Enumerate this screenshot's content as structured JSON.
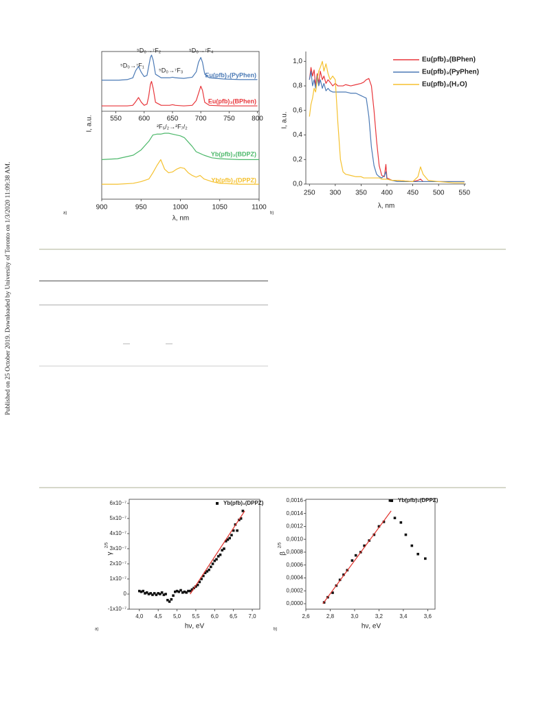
{
  "side_note": "Published on 25 October 2019. Downloaded by University of Toronto on 1/3/2020 11:09:38 AM.",
  "panel_labels": [
    "a)",
    "b)",
    "a)",
    "b)"
  ],
  "table_dashes": [
    "—",
    "—"
  ],
  "chart_data": [
    {
      "type": "line",
      "ylabel": "I, a.u.",
      "xlim": [
        525,
        803
      ],
      "ylim": [
        0,
        1
      ],
      "xticks": [
        550,
        600,
        650,
        700,
        750,
        800
      ],
      "annotations": [
        "⁵D₀→⁷F₁",
        "⁵D₀→⁷F₂",
        "⁵D₀→⁷F₃",
        "⁵D₀→⁷F₄"
      ],
      "x": [
        525,
        540,
        555,
        570,
        580,
        585,
        590,
        595,
        600,
        605,
        608,
        611,
        613,
        616,
        620,
        630,
        645,
        650,
        655,
        670,
        685,
        692,
        696,
        700,
        703,
        707,
        715,
        740,
        770,
        800
      ],
      "series": [
        {
          "name": "Eu(pfb)₃(PyPhen)",
          "color": "#4a79b5",
          "values": [
            0.52,
            0.52,
            0.52,
            0.53,
            0.56,
            0.68,
            0.75,
            0.65,
            0.58,
            0.6,
            0.75,
            0.9,
            0.94,
            0.85,
            0.62,
            0.56,
            0.56,
            0.57,
            0.56,
            0.55,
            0.57,
            0.66,
            0.82,
            0.9,
            0.82,
            0.62,
            0.56,
            0.54,
            0.53,
            0.53
          ]
        },
        {
          "name": "Eu(pfb)₃(BPhen)",
          "color": "#e8353a",
          "values": [
            0.09,
            0.09,
            0.09,
            0.09,
            0.1,
            0.16,
            0.23,
            0.15,
            0.1,
            0.12,
            0.25,
            0.45,
            0.5,
            0.38,
            0.15,
            0.1,
            0.1,
            0.11,
            0.1,
            0.09,
            0.1,
            0.18,
            0.3,
            0.42,
            0.35,
            0.15,
            0.1,
            0.09,
            0.09,
            0.09
          ]
        }
      ]
    },
    {
      "type": "line",
      "xlabel": "λ, nm",
      "xlim": [
        900,
        1100
      ],
      "ylim": [
        0,
        1
      ],
      "xticks": [
        900,
        950,
        1000,
        1050,
        1100
      ],
      "annotations": [
        "²F₅/₂→²F₇/₂"
      ],
      "x": [
        900,
        920,
        940,
        950,
        960,
        965,
        970,
        975,
        980,
        985,
        990,
        995,
        1000,
        1005,
        1010,
        1015,
        1020,
        1025,
        1030,
        1040,
        1050,
        1075,
        1100
      ],
      "series": [
        {
          "name": "Yb(pfb)₃(BDPZ)",
          "color": "#4cb86a",
          "values": [
            0.45,
            0.46,
            0.5,
            0.56,
            0.66,
            0.73,
            0.74,
            0.74,
            0.75,
            0.75,
            0.74,
            0.73,
            0.72,
            0.7,
            0.65,
            0.6,
            0.54,
            0.52,
            0.5,
            0.47,
            0.46,
            0.45,
            0.45
          ]
        },
        {
          "name": "Yb(pfb)₃(DPPZ)",
          "color": "#f5c12e",
          "values": [
            0.17,
            0.17,
            0.18,
            0.2,
            0.23,
            0.3,
            0.38,
            0.45,
            0.34,
            0.3,
            0.31,
            0.34,
            0.36,
            0.35,
            0.3,
            0.27,
            0.25,
            0.27,
            0.23,
            0.2,
            0.18,
            0.17,
            0.17
          ]
        }
      ]
    },
    {
      "type": "line",
      "xlabel": "λ, nm",
      "ylabel": "I, a.u.",
      "xlim": [
        243,
        553
      ],
      "ylim": [
        0,
        1.08
      ],
      "xticks": [
        250,
        300,
        350,
        400,
        450,
        500,
        550
      ],
      "yticks": [
        {
          "value": 0,
          "label": "0,0"
        },
        {
          "value": 0.2,
          "label": "0,2"
        },
        {
          "value": 0.4,
          "label": "0,4"
        },
        {
          "value": 0.6,
          "label": "0,6"
        },
        {
          "value": 0.8,
          "label": "0,8"
        },
        {
          "value": 1.0,
          "label": "1,0"
        }
      ],
      "x": [
        250,
        253,
        256,
        259,
        262,
        265,
        268,
        271,
        275,
        278,
        282,
        286,
        290,
        295,
        300,
        305,
        310,
        315,
        320,
        330,
        340,
        350,
        355,
        360,
        365,
        370,
        375,
        380,
        385,
        390,
        395,
        398,
        400,
        410,
        420,
        450,
        460,
        465,
        470,
        480,
        500,
        530,
        550
      ],
      "series": [
        {
          "name": "Eu(pfb)₃(BPhen)",
          "color": "#e8353a",
          "values": [
            0.85,
            0.95,
            0.88,
            0.93,
            0.8,
            0.9,
            0.82,
            0.92,
            0.85,
            0.88,
            0.82,
            0.85,
            0.83,
            0.8,
            0.82,
            0.8,
            0.8,
            0.8,
            0.81,
            0.8,
            0.81,
            0.82,
            0.83,
            0.85,
            0.86,
            0.8,
            0.6,
            0.35,
            0.15,
            0.07,
            0.06,
            0.16,
            0.05,
            0.03,
            0.03,
            0.02,
            0.03,
            0.04,
            0.02,
            0.02,
            0.02,
            0.02,
            0.02
          ]
        },
        {
          "name": "Eu(pfb)₃(PyPhen)",
          "color": "#4a79b5",
          "values": [
            0.85,
            0.92,
            0.8,
            0.85,
            0.78,
            0.88,
            0.8,
            0.85,
            0.78,
            0.82,
            0.76,
            0.78,
            0.76,
            0.75,
            0.75,
            0.75,
            0.75,
            0.75,
            0.75,
            0.74,
            0.74,
            0.72,
            0.71,
            0.7,
            0.55,
            0.3,
            0.15,
            0.08,
            0.06,
            0.05,
            0.07,
            0.1,
            0.04,
            0.03,
            0.02,
            0.02,
            0.02,
            0.02,
            0.02,
            0.02,
            0.02,
            0.02,
            0.02
          ]
        },
        {
          "name": "Eu(pfb)₃(H₂O)",
          "color": "#f5c12e",
          "values": [
            0.55,
            0.65,
            0.7,
            0.78,
            0.75,
            0.85,
            0.92,
            0.95,
            1.0,
            0.92,
            0.98,
            0.9,
            0.85,
            0.88,
            0.85,
            0.5,
            0.2,
            0.1,
            0.08,
            0.07,
            0.06,
            0.06,
            0.05,
            0.05,
            0.05,
            0.05,
            0.05,
            0.05,
            0.05,
            0.04,
            0.04,
            0.04,
            0.04,
            0.03,
            0.03,
            0.02,
            0.06,
            0.14,
            0.08,
            0.03,
            0.02,
            0.01,
            0.01
          ]
        }
      ]
    },
    {
      "type": "scatter",
      "xlabel": "hν, eV",
      "ylabel": "γ",
      "ylabel_exponent": "2/5",
      "xlim": [
        3.73,
        7.2
      ],
      "ylim": [
        -1e-07,
        6.27e-07
      ],
      "xticks": [
        {
          "value": 4,
          "label": "4,0"
        },
        {
          "value": 4.5,
          "label": "4,5"
        },
        {
          "value": 5,
          "label": "5,0"
        },
        {
          "value": 5.5,
          "label": "5,5"
        },
        {
          "value": 6,
          "label": "6,0"
        },
        {
          "value": 6.5,
          "label": "6,5"
        },
        {
          "value": 7,
          "label": "7,0"
        }
      ],
      "yticks": [
        {
          "value": -1e-07,
          "label": "-1x10⁻⁷"
        },
        0,
        {
          "value": 1e-07,
          "label": "1x10⁻⁷"
        },
        {
          "value": 2e-07,
          "label": "2x10⁻⁷"
        },
        {
          "value": 3e-07,
          "label": "3x10⁻⁷"
        },
        {
          "value": 4e-07,
          "label": "4x10⁻⁷"
        },
        {
          "value": 5e-07,
          "label": "5x10⁻⁷"
        },
        {
          "value": 6e-07,
          "label": "6x10⁻⁷"
        }
      ],
      "x": [
        4.0,
        4.05,
        4.1,
        4.15,
        4.2,
        4.25,
        4.3,
        4.35,
        4.4,
        4.45,
        4.5,
        4.55,
        4.6,
        4.65,
        4.7,
        4.75,
        4.8,
        4.85,
        4.9,
        4.95,
        5.0,
        5.05,
        5.1,
        5.15,
        5.2,
        5.25,
        5.3,
        5.35,
        5.4,
        5.45,
        5.5,
        5.55,
        5.6,
        5.65,
        5.7,
        5.75,
        5.8,
        5.85,
        5.9,
        5.95,
        6.0,
        6.05,
        6.1,
        6.15,
        6.2,
        6.25,
        6.3,
        6.35,
        6.4,
        6.45,
        6.5,
        6.55,
        6.6,
        6.65,
        6.7,
        6.75
      ],
      "series": [
        {
          "name": "Yb(pfb)₃(DPPZ)",
          "color": "#111111",
          "mode": "markers",
          "values": [
            2e-08,
            1.5e-08,
            2e-08,
            5e-09,
            1e-08,
            0,
            5e-09,
            -5e-09,
            5e-09,
            -5e-09,
            5e-09,
            0,
            1e-08,
            -5e-09,
            0,
            -4e-08,
            -5e-08,
            -3.5e-08,
            -1e-08,
            1.5e-08,
            2e-08,
            1.5e-08,
            2.5e-08,
            1e-08,
            1.5e-08,
            1e-08,
            2e-08,
            2e-08,
            3e-08,
            4e-08,
            5e-08,
            6e-08,
            8e-08,
            1e-07,
            1.2e-07,
            1.4e-07,
            1.5e-07,
            1.6e-07,
            1.8e-07,
            2e-07,
            2.2e-07,
            2.3e-07,
            2.5e-07,
            2.6e-07,
            2.9e-07,
            3e-07,
            3.5e-07,
            3.6e-07,
            3.7e-07,
            3.9e-07,
            4.2e-07,
            4.6e-07,
            4.2e-07,
            4.9e-07,
            5e-07,
            5.5e-07
          ]
        },
        {
          "color": "#e0302a",
          "mode": "line",
          "x": [
            5.35,
            6.8
          ],
          "values": [
            0,
            5.5e-07
          ]
        }
      ]
    },
    {
      "type": "scatter",
      "xlabel": "hν, eV",
      "ylabel": "β",
      "ylabel_exponent": "2/5",
      "xlim": [
        2.6,
        3.66
      ],
      "ylim": [
        -8.5e-05,
        0.00162
      ],
      "xticks": [
        {
          "value": 2.6,
          "label": "2,6"
        },
        {
          "value": 2.8,
          "label": "2,8"
        },
        {
          "value": 3.0,
          "label": "3,0"
        },
        {
          "value": 3.2,
          "label": "3,2"
        },
        {
          "value": 3.4,
          "label": "3,4"
        },
        {
          "value": 3.6,
          "label": "3,6"
        }
      ],
      "yticks": [
        {
          "value": 0,
          "label": "0,0000"
        },
        {
          "value": 0.0002,
          "label": "0,0002"
        },
        {
          "value": 0.0004,
          "label": "0,0004"
        },
        {
          "value": 0.0006,
          "label": "0,0006"
        },
        {
          "value": 0.0008,
          "label": "0,0008"
        },
        {
          "value": 0.001,
          "label": "0,0010"
        },
        {
          "value": 0.0012,
          "label": "0,0012"
        },
        {
          "value": 0.0014,
          "label": "0,0014"
        },
        {
          "value": 0.0016,
          "label": "0,0016"
        }
      ],
      "x": [
        2.75,
        2.78,
        2.82,
        2.85,
        2.88,
        2.91,
        2.94,
        2.98,
        3.01,
        3.05,
        3.08,
        3.12,
        3.16,
        3.2,
        3.24,
        3.29,
        3.33,
        3.38,
        3.42,
        3.47,
        3.52,
        3.58
      ],
      "series": [
        {
          "name": "Yb(pfb)₃(DPPZ)",
          "color": "#111111",
          "mode": "markers",
          "values": [
            2e-05,
            0.0001,
            0.00017,
            0.00028,
            0.00037,
            0.00045,
            0.00052,
            0.00067,
            0.00075,
            0.0008,
            0.0009,
            0.00098,
            0.00107,
            0.0012,
            0.00127,
            0.0016,
            0.00133,
            0.00126,
            0.00107,
            0.0009,
            0.00077,
            0.0007
          ]
        },
        {
          "color": "#e0302a",
          "mode": "line",
          "x": [
            2.74,
            3.3
          ],
          "values": [
            0,
            0.00144
          ]
        }
      ]
    }
  ]
}
